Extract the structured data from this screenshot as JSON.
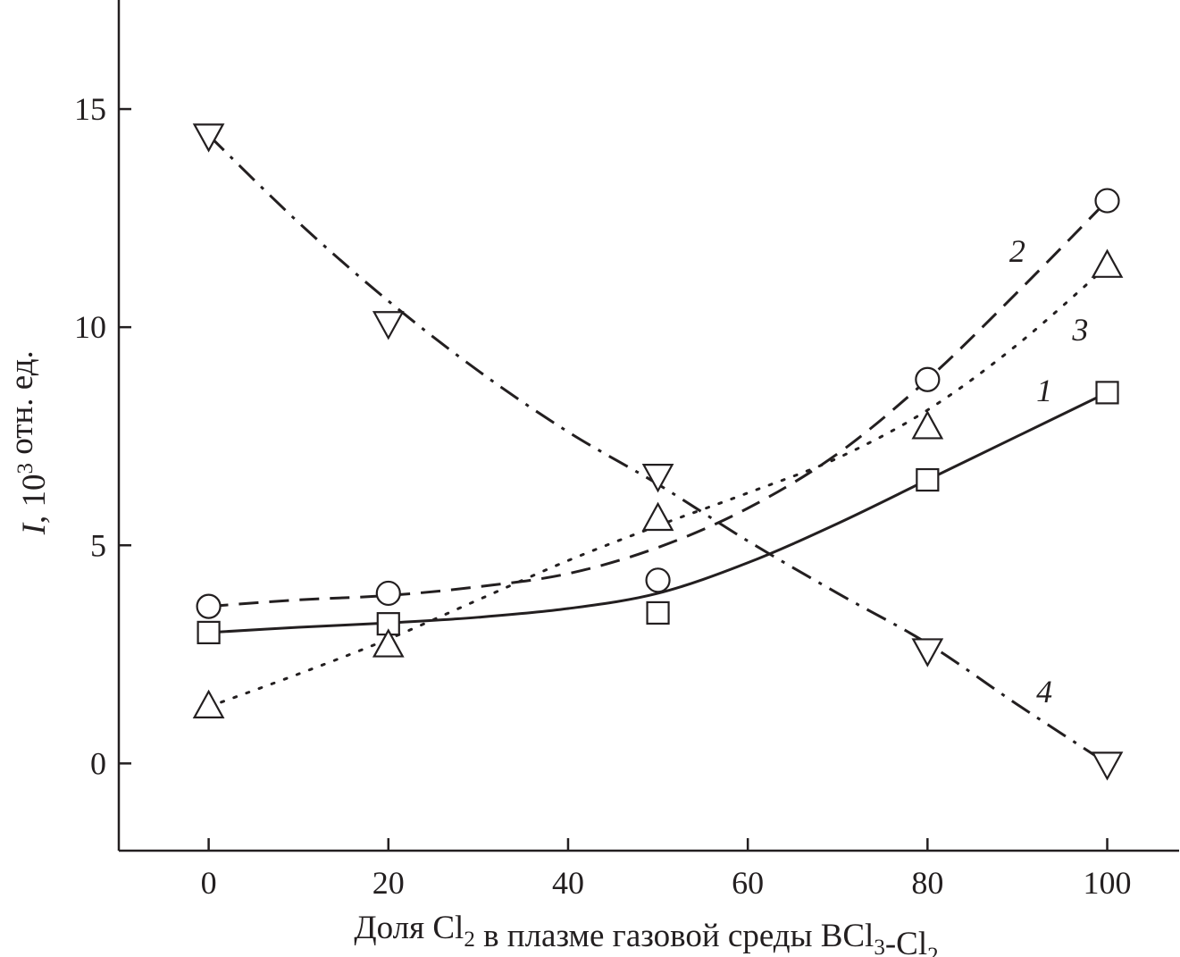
{
  "chart_data": {
    "type": "line",
    "xlabel": {
      "parts": [
        {
          "text": "Доля Cl",
          "sub": false
        },
        {
          "text": "2",
          "sub": true
        },
        {
          "text": " в плазме газовой среды BCl",
          "sub": false
        },
        {
          "text": "3",
          "sub": true
        },
        {
          "text": "-Cl",
          "sub": false
        },
        {
          "text": "2",
          "sub": true
        }
      ]
    },
    "ylabel": {
      "parts": [
        {
          "text": "I",
          "italic": true
        },
        {
          "text": ", 10",
          "italic": false
        },
        {
          "text": "3",
          "sup": true
        },
        {
          "text": " отн. ед.",
          "italic": false
        }
      ]
    },
    "xlim": [
      -10,
      108
    ],
    "ylim": [
      -2,
      17.5
    ],
    "xticks": [
      0,
      20,
      40,
      60,
      80,
      100
    ],
    "xtick_labels": [
      "0",
      "20",
      "40",
      "60",
      "80",
      "100"
    ],
    "yticks": [
      0,
      5,
      10,
      15
    ],
    "ytick_labels": [
      "0",
      "5",
      "10",
      "15"
    ],
    "grid": false,
    "series": [
      {
        "name": "1",
        "marker": "square",
        "line_style": "solid",
        "x": [
          0,
          20,
          50,
          80,
          100
        ],
        "y": [
          3.0,
          3.2,
          3.45,
          6.5,
          8.5
        ],
        "fit_x": [
          0,
          10,
          20,
          30,
          40,
          50,
          60,
          70,
          80,
          90,
          100
        ],
        "fit_y": [
          3.0,
          3.12,
          3.22,
          3.35,
          3.55,
          3.9,
          4.6,
          5.5,
          6.5,
          7.5,
          8.5
        ],
        "label_pos": [
          93,
          8.3
        ]
      },
      {
        "name": "2",
        "marker": "circle",
        "line_style": "dashed",
        "x": [
          0,
          20,
          50,
          80,
          100
        ],
        "y": [
          3.6,
          3.9,
          4.2,
          8.8,
          12.9
        ],
        "fit_x": [
          0,
          10,
          20,
          30,
          40,
          50,
          60,
          70,
          80,
          90,
          100
        ],
        "fit_y": [
          3.6,
          3.75,
          3.85,
          4.05,
          4.35,
          4.95,
          5.85,
          7.1,
          8.8,
          10.8,
          12.9
        ],
        "label_pos": [
          90,
          11.5
        ]
      },
      {
        "name": "3",
        "marker": "triangle-up",
        "line_style": "dotted",
        "x": [
          0,
          20,
          50,
          80,
          100
        ],
        "y": [
          1.3,
          2.7,
          5.6,
          7.7,
          11.4
        ],
        "fit_x": [
          0,
          10,
          20,
          30,
          40,
          50,
          60,
          70,
          80,
          90,
          100
        ],
        "fit_y": [
          1.3,
          2.05,
          2.85,
          3.75,
          4.65,
          5.45,
          6.2,
          7.0,
          8.1,
          9.6,
          11.4
        ],
        "label_pos": [
          97,
          9.7
        ]
      },
      {
        "name": "4",
        "marker": "triangle-down",
        "line_style": "dash-dot",
        "x": [
          0,
          20,
          50,
          80,
          100
        ],
        "y": [
          14.4,
          10.1,
          6.6,
          2.6,
          0.0
        ],
        "fit_x": [
          0,
          10,
          20,
          30,
          40,
          50,
          60,
          70,
          80,
          90,
          100
        ],
        "fit_y": [
          14.4,
          12.4,
          10.6,
          9.0,
          7.6,
          6.4,
          5.1,
          3.9,
          2.75,
          1.35,
          0.0
        ],
        "label_pos": [
          93,
          1.4
        ]
      }
    ]
  }
}
